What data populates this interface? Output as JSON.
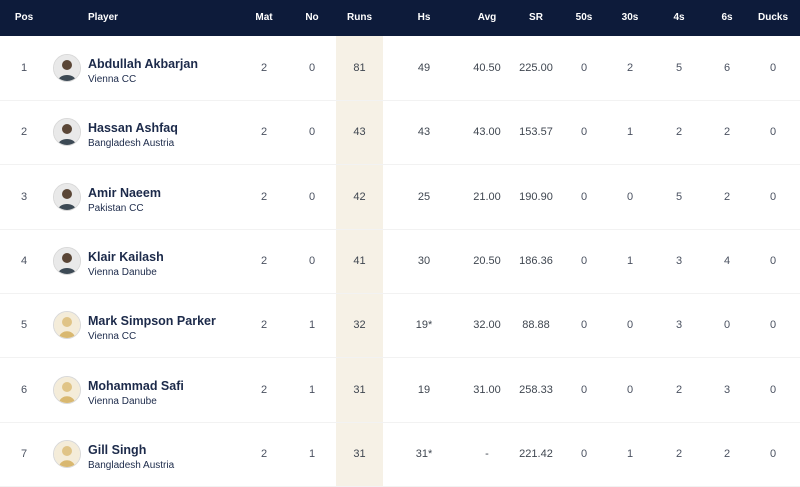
{
  "header": {
    "pos": "Pos",
    "player": "Player",
    "mat": "Mat",
    "no": "No",
    "runs": "Runs",
    "hs": "Hs",
    "avg": "Avg",
    "sr": "SR",
    "fifties": "50s",
    "thirties": "30s",
    "fours": "4s",
    "sixes": "6s",
    "ducks": "Ducks"
  },
  "colors": {
    "header_bg": "#0d1b3a",
    "runs_highlight": "#f6f1e6",
    "player_text": "#1c2a4a"
  },
  "rows": [
    {
      "pos": "1",
      "name": "Abdullah Akbarjan",
      "team": "Vienna CC",
      "avatar": "player-photo-icon",
      "mat": "2",
      "no": "0",
      "runs": "81",
      "hs": "49",
      "avg": "40.50",
      "sr": "225.00",
      "fifties": "0",
      "thirties": "2",
      "fours": "5",
      "sixes": "6",
      "ducks": "0"
    },
    {
      "pos": "2",
      "name": "Hassan Ashfaq",
      "team": "Bangladesh Austria",
      "avatar": "player-photo-icon",
      "mat": "2",
      "no": "0",
      "runs": "43",
      "hs": "43",
      "avg": "43.00",
      "sr": "153.57",
      "fifties": "0",
      "thirties": "1",
      "fours": "2",
      "sixes": "2",
      "ducks": "0"
    },
    {
      "pos": "3",
      "name": "Amir Naeem",
      "team": "Pakistan CC",
      "avatar": "player-photo-icon",
      "mat": "2",
      "no": "0",
      "runs": "42",
      "hs": "25",
      "avg": "21.00",
      "sr": "190.90",
      "fifties": "0",
      "thirties": "0",
      "fours": "5",
      "sixes": "2",
      "ducks": "0"
    },
    {
      "pos": "4",
      "name": "Klair Kailash",
      "team": "Vienna Danube",
      "avatar": "player-photo-icon",
      "mat": "2",
      "no": "0",
      "runs": "41",
      "hs": "30",
      "avg": "20.50",
      "sr": "186.36",
      "fifties": "0",
      "thirties": "1",
      "fours": "3",
      "sixes": "4",
      "ducks": "0"
    },
    {
      "pos": "5",
      "name": "Mark Simpson Parker",
      "team": "Vienna CC",
      "avatar": "placeholder-avatar-icon",
      "mat": "2",
      "no": "1",
      "runs": "32",
      "hs": "19*",
      "avg": "32.00",
      "sr": "88.88",
      "fifties": "0",
      "thirties": "0",
      "fours": "3",
      "sixes": "0",
      "ducks": "0"
    },
    {
      "pos": "6",
      "name": "Mohammad Safi",
      "team": "Vienna Danube",
      "avatar": "placeholder-avatar-icon",
      "mat": "2",
      "no": "1",
      "runs": "31",
      "hs": "19",
      "avg": "31.00",
      "sr": "258.33",
      "fifties": "0",
      "thirties": "0",
      "fours": "2",
      "sixes": "3",
      "ducks": "0"
    },
    {
      "pos": "7",
      "name": "Gill Singh",
      "team": "Bangladesh Austria",
      "avatar": "placeholder-avatar-icon",
      "mat": "2",
      "no": "1",
      "runs": "31",
      "hs": "31*",
      "avg": "-",
      "sr": "221.42",
      "fifties": "0",
      "thirties": "1",
      "fours": "2",
      "sixes": "2",
      "ducks": "0"
    }
  ]
}
